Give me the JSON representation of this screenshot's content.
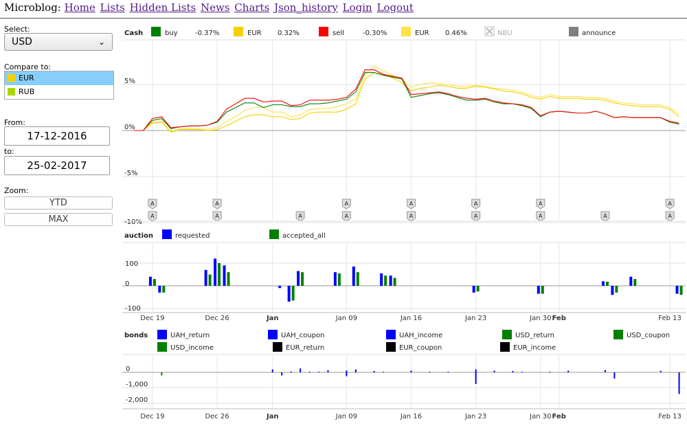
{
  "nav": {
    "brand": "Microblog:",
    "links": [
      "Home",
      "Lists",
      "Hidden Lists",
      "News",
      "Charts",
      "Json_history",
      "Login",
      "Logout"
    ]
  },
  "sidebar": {
    "select_label": "Select:",
    "select_value": "USD",
    "compare_label": "Compare to:",
    "compare_items": [
      {
        "label": "EUR",
        "color": "#f5d000",
        "selected": true
      },
      {
        "label": "RUB",
        "color": "#a8d800",
        "selected": false
      }
    ],
    "from_label": "From:",
    "from_value": "17-12-2016",
    "to_label": "to:",
    "to_value": "25-02-2017",
    "zoom_label": "Zoom:",
    "zoom_buttons": [
      "YTD",
      "MAX"
    ]
  },
  "chart_data": [
    {
      "type": "line",
      "title": "Cash",
      "yticks": [
        "5%",
        "0%",
        "-5%",
        "-10%"
      ],
      "ylim": [
        -10,
        7.5
      ],
      "x_dates": [
        "Dec 17",
        "Dec 18",
        "Dec 19",
        "Dec 20",
        "Dec 21",
        "Dec 22",
        "Dec 23",
        "Dec 24",
        "Dec 25",
        "Dec 26",
        "Dec 27",
        "Dec 28",
        "Dec 29",
        "Dec 30",
        "Dec 31",
        "Jan 01",
        "Jan 02",
        "Jan 03",
        "Jan 04",
        "Jan 05",
        "Jan 06",
        "Jan 07",
        "Jan 08",
        "Jan 09",
        "Jan 10",
        "Jan 11",
        "Jan 12",
        "Jan 13",
        "Jan 14",
        "Jan 15",
        "Jan 16",
        "Jan 17",
        "Jan 18",
        "Jan 19",
        "Jan 20",
        "Jan 21",
        "Jan 22",
        "Jan 23",
        "Jan 24",
        "Jan 25",
        "Jan 26",
        "Jan 27",
        "Jan 28",
        "Jan 29",
        "Jan 30",
        "Jan 31",
        "Feb 01",
        "Feb 02",
        "Feb 03",
        "Feb 04",
        "Feb 05",
        "Feb 06",
        "Feb 07",
        "Feb 08",
        "Feb 09",
        "Feb 10",
        "Feb 11",
        "Feb 12",
        "Feb 13",
        "Feb 14"
      ],
      "series": [
        {
          "name": "buy",
          "value_label": "-0.37%",
          "color": "#008000",
          "values": [
            0.0,
            0.0,
            1.1,
            1.3,
            0.2,
            0.4,
            0.5,
            0.5,
            0.6,
            0.9,
            2.0,
            2.5,
            3.0,
            3.0,
            2.5,
            2.8,
            2.8,
            2.6,
            2.6,
            2.9,
            2.9,
            3.0,
            3.2,
            3.4,
            4.2,
            6.3,
            6.3,
            6.0,
            5.8,
            5.6,
            3.6,
            3.8,
            4.0,
            4.1,
            3.9,
            3.6,
            3.3,
            3.3,
            3.4,
            3.1,
            2.9,
            2.9,
            2.7,
            2.4,
            1.5,
            2.0,
            2.1,
            2.0,
            1.9,
            1.9,
            2.1,
            1.8,
            1.4,
            1.5,
            1.4,
            1.4,
            1.4,
            1.4,
            0.9,
            0.7
          ]
        },
        {
          "name": "EUR",
          "value_label": "0.32%",
          "color": "#f5d000",
          "values": [
            0.0,
            0.0,
            0.8,
            0.9,
            -0.2,
            0.1,
            0.1,
            0.1,
            0.0,
            0.1,
            0.5,
            1.0,
            1.5,
            1.7,
            1.7,
            1.5,
            1.5,
            1.2,
            1.3,
            1.9,
            2.0,
            2.0,
            2.0,
            2.3,
            2.9,
            5.6,
            6.3,
            6.1,
            5.7,
            5.2,
            4.3,
            4.6,
            4.7,
            4.9,
            4.8,
            4.6,
            4.6,
            4.8,
            4.7,
            4.5,
            4.3,
            4.2,
            4.0,
            3.6,
            3.4,
            3.7,
            3.5,
            3.5,
            3.5,
            3.4,
            3.4,
            3.3,
            3.0,
            2.8,
            2.7,
            2.6,
            2.6,
            2.6,
            2.3,
            1.5
          ]
        },
        {
          "name": "sell",
          "value_label": "-0.30%",
          "color": "#ff0000",
          "values": [
            0.0,
            0.0,
            1.3,
            1.5,
            0.3,
            0.4,
            0.5,
            0.5,
            0.6,
            1.0,
            2.3,
            2.9,
            3.5,
            3.5,
            3.1,
            3.2,
            3.2,
            2.7,
            2.8,
            3.3,
            3.3,
            3.3,
            3.4,
            3.6,
            4.5,
            6.6,
            6.6,
            6.1,
            5.9,
            5.7,
            3.9,
            4.0,
            4.1,
            4.2,
            4.0,
            3.7,
            3.5,
            3.4,
            3.5,
            3.2,
            3.0,
            2.9,
            2.8,
            2.5,
            1.6,
            2.0,
            2.1,
            2.0,
            1.9,
            1.9,
            2.1,
            1.8,
            1.4,
            1.5,
            1.4,
            1.4,
            1.4,
            1.4,
            1.0,
            0.8
          ]
        },
        {
          "name": "EUR",
          "value_label": "0.46%",
          "color": "#ffe24a",
          "values": [
            0.0,
            0.0,
            0.9,
            1.0,
            -0.1,
            0.2,
            0.2,
            0.2,
            0.1,
            0.3,
            1.0,
            1.5,
            2.2,
            2.5,
            2.5,
            2.0,
            2.0,
            1.5,
            1.7,
            2.3,
            2.4,
            2.4,
            2.6,
            2.9,
            3.4,
            6.0,
            7.0,
            6.5,
            6.0,
            5.6,
            4.7,
            5.0,
            5.2,
            5.1,
            5.0,
            4.8,
            4.8,
            4.9,
            4.8,
            4.6,
            4.5,
            4.4,
            4.2,
            3.8,
            3.6,
            3.9,
            3.7,
            3.7,
            3.7,
            3.6,
            3.6,
            3.5,
            3.2,
            3.0,
            2.9,
            2.8,
            2.8,
            2.8,
            2.5,
            1.8
          ]
        }
      ],
      "legend_extra": [
        {
          "name": "NBU",
          "disabled": true,
          "color": "#bbbbbb"
        },
        {
          "name": "announce",
          "color": "#808080"
        }
      ],
      "announce_flags": {
        "label": "A",
        "top_dates": [
          "Dec 19",
          "Dec 26",
          "Jan 09",
          "Jan 16",
          "Jan 23",
          "Jan 30",
          "Feb 13"
        ],
        "bottom_dates": [
          "Dec 19",
          "Dec 26",
          "Jan 04",
          "Jan 09",
          "Jan 16",
          "Jan 23",
          "Jan 30",
          "Feb 06",
          "Feb 13"
        ]
      }
    },
    {
      "type": "bar",
      "title": "auction",
      "yticks": [
        "100",
        "0",
        "-100"
      ],
      "ylim": [
        -110,
        120
      ],
      "series": [
        {
          "name": "requested",
          "color": "#0000ff",
          "points": [
            [
              "Dec 19",
              40
            ],
            [
              "Dec 20",
              -30
            ],
            [
              "Dec 25",
              70
            ],
            [
              "Dec 26",
              120
            ],
            [
              "Dec 27",
              90
            ],
            [
              "Jan 02",
              -10
            ],
            [
              "Jan 03",
              -70
            ],
            [
              "Jan 04",
              65
            ],
            [
              "Jan 08",
              60
            ],
            [
              "Jan 10",
              85
            ],
            [
              "Jan 13",
              55
            ],
            [
              "Jan 14",
              45
            ],
            [
              "Jan 23",
              -30
            ],
            [
              "Jan 30",
              -35
            ],
            [
              "Feb 06",
              20
            ],
            [
              "Feb 07",
              -40
            ],
            [
              "Feb 09",
              40
            ],
            [
              "Feb 14",
              -35
            ]
          ]
        },
        {
          "name": "accepted_all",
          "color": "#008000",
          "points": [
            [
              "Dec 19",
              30
            ],
            [
              "Dec 20",
              -30
            ],
            [
              "Dec 25",
              50
            ],
            [
              "Dec 26",
              100
            ],
            [
              "Dec 27",
              60
            ],
            [
              "Jan 03",
              -65
            ],
            [
              "Jan 04",
              60
            ],
            [
              "Jan 08",
              55
            ],
            [
              "Jan 10",
              60
            ],
            [
              "Jan 13",
              45
            ],
            [
              "Jan 14",
              35
            ],
            [
              "Jan 23",
              -25
            ],
            [
              "Jan 30",
              -35
            ],
            [
              "Feb 06",
              18
            ],
            [
              "Feb 07",
              -30
            ],
            [
              "Feb 09",
              30
            ],
            [
              "Feb 14",
              -40
            ]
          ]
        }
      ]
    },
    {
      "type": "bar",
      "title": "bonds",
      "yticks": [
        "0",
        "-1,000",
        "-2,000"
      ],
      "ylim": [
        -2300,
        800
      ],
      "series": [
        {
          "name": "UAH_return",
          "color": "#0000ff",
          "points": [
            [
              "Jan 02",
              -200
            ],
            [
              "Jan 09",
              -250
            ],
            [
              "Jan 23",
              -750
            ],
            [
              "Feb 07",
              -400
            ],
            [
              "Feb 14",
              -1400
            ]
          ]
        },
        {
          "name": "UAH_coupon",
          "color": "#0000ff",
          "points": [
            [
              "Jan 01",
              190
            ],
            [
              "Jan 04",
              250
            ],
            [
              "Jan 07",
              140
            ],
            [
              "Jan 09",
              120
            ],
            [
              "Jan 10",
              190
            ],
            [
              "Jan 12",
              90
            ],
            [
              "Jan 16",
              110
            ],
            [
              "Jan 23",
              200
            ],
            [
              "Jan 25",
              110
            ],
            [
              "Jan 27",
              90
            ],
            [
              "Feb 02",
              110
            ],
            [
              "Feb 06",
              150
            ],
            [
              "Feb 12",
              100
            ]
          ]
        },
        {
          "name": "UAH_income",
          "color": "#0000ff",
          "points": [
            [
              "Jan 03",
              60
            ],
            [
              "Jan 05",
              40
            ],
            [
              "Jan 06",
              40
            ],
            [
              "Jan 13",
              40
            ],
            [
              "Jan 18",
              40
            ],
            [
              "Jan 20",
              40
            ],
            [
              "Jan 28",
              40
            ],
            [
              "Jan 31",
              40
            ]
          ]
        },
        {
          "name": "USD_return",
          "color": "#008000",
          "points": [
            [
              "Dec 20",
              -200
            ]
          ]
        },
        {
          "name": "USD_coupon",
          "color": "#008000",
          "points": []
        },
        {
          "name": "USD_income",
          "color": "#008000",
          "points": []
        },
        {
          "name": "EUR_return",
          "color": "#000000",
          "points": []
        },
        {
          "name": "EUR_coupon",
          "color": "#000000",
          "points": []
        },
        {
          "name": "EUR_income",
          "color": "#000000",
          "points": []
        }
      ]
    }
  ],
  "x_axis": {
    "start": "Dec 17",
    "labels": [
      {
        "text": "Dec 19",
        "at": "Dec 19",
        "bold": false
      },
      {
        "text": "Dec 26",
        "at": "Dec 26",
        "bold": false
      },
      {
        "text": "Jan",
        "at": "Jan 01",
        "bold": true
      },
      {
        "text": "Jan 09",
        "at": "Jan 09",
        "bold": false
      },
      {
        "text": "Jan 16",
        "at": "Jan 16",
        "bold": false
      },
      {
        "text": "Jan 23",
        "at": "Jan 23",
        "bold": false
      },
      {
        "text": "Jan 30",
        "at": "Jan 30",
        "bold": false
      },
      {
        "text": "Feb",
        "at": "Feb 01",
        "bold": true
      },
      {
        "text": "Feb 13",
        "at": "Feb 13",
        "bold": false
      }
    ]
  }
}
